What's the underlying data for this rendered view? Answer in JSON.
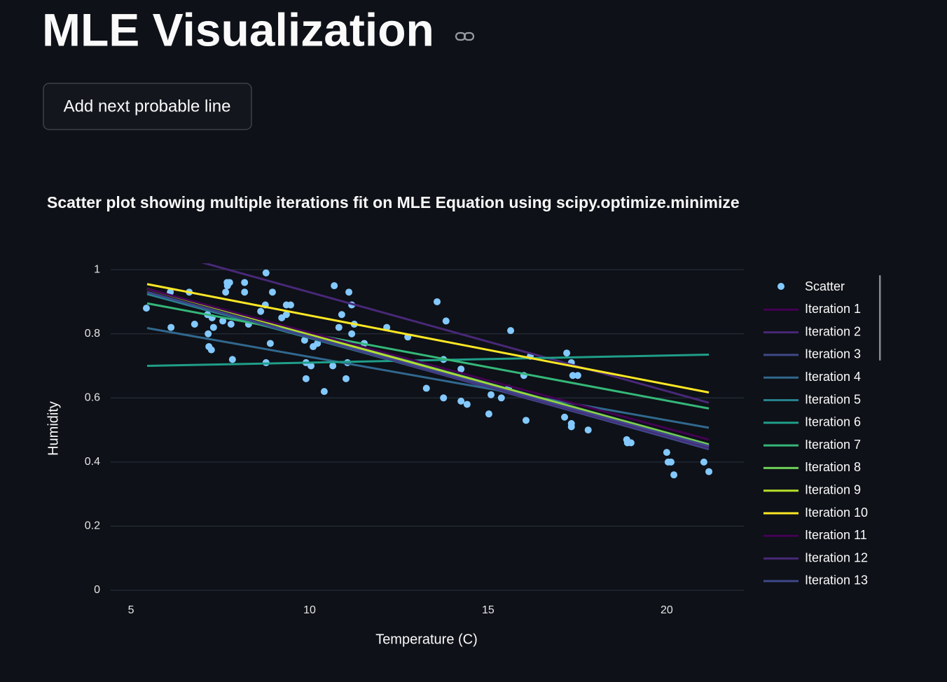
{
  "header": {
    "title": "MLE Visualization"
  },
  "button": {
    "label": "Add next probable line"
  },
  "chart_data": {
    "type": "scatter",
    "title": "Scatter plot showing multiple iterations fit on MLE Equation using scipy.optimize.minimize",
    "x_label": "Temperature  (C)",
    "y_label": "Humidity",
    "xlim": [
      4.43,
      22.16
    ],
    "ylim": [
      0,
      1.02
    ],
    "xticks": [
      5,
      10,
      15,
      20
    ],
    "yticks": [
      0,
      0.2,
      0.4,
      0.6,
      0.8,
      1
    ],
    "grid": true,
    "legend": "right",
    "series": [
      {
        "name": "Scatter",
        "mode": "markers",
        "color": "#83c9ff",
        "x": [
          5.43,
          6.12,
          6.1,
          6.63,
          6.78,
          7.14,
          7.16,
          7.18,
          7.25,
          7.31,
          7.27,
          7.57,
          7.65,
          7.69,
          7.76,
          7.7,
          7.8,
          7.84,
          8.18,
          8.18,
          8.29,
          8.63,
          8.78,
          8.76,
          8.78,
          8.9,
          8.96,
          9.22,
          9.35,
          9.35,
          9.47,
          9.86,
          9.9,
          9.9,
          10.04,
          10.1,
          10.22,
          10.41,
          10.69,
          10.65,
          10.82,
          10.9,
          11.02,
          11.06,
          11.1,
          11.18,
          11.18,
          11.25,
          11.53,
          12.16,
          12.75,
          13.27,
          13.57,
          13.75,
          13.82,
          13.75,
          14.24,
          14.24,
          14.41,
          15.02,
          15.08,
          15.37,
          15.57,
          15.63,
          16.0,
          16.06,
          16.18,
          17.14,
          17.2,
          17.33,
          17.33,
          17.33,
          17.37,
          17.51,
          17.8,
          18.88,
          18.9,
          19.0,
          20.0,
          20.04,
          20.12,
          20.2,
          21.04,
          21.18
        ],
        "values": [
          0.88,
          0.82,
          0.93,
          0.93,
          0.83,
          0.86,
          0.8,
          0.76,
          0.75,
          0.82,
          0.85,
          0.84,
          0.93,
          0.96,
          0.96,
          0.95,
          0.83,
          0.72,
          0.96,
          0.93,
          0.83,
          0.87,
          0.99,
          0.89,
          0.71,
          0.77,
          0.93,
          0.85,
          0.86,
          0.89,
          0.89,
          0.78,
          0.66,
          0.71,
          0.7,
          0.76,
          0.77,
          0.62,
          0.95,
          0.7,
          0.82,
          0.86,
          0.66,
          0.71,
          0.93,
          0.89,
          0.8,
          0.83,
          0.77,
          0.82,
          0.79,
          0.63,
          0.9,
          0.6,
          0.84,
          0.72,
          0.69,
          0.59,
          0.58,
          0.55,
          0.61,
          0.6,
          0.63,
          0.81,
          0.67,
          0.53,
          0.73,
          0.54,
          0.74,
          0.71,
          0.52,
          0.51,
          0.67,
          0.67,
          0.5,
          0.47,
          0.46,
          0.46,
          0.43,
          0.4,
          0.4,
          0.36,
          0.4,
          0.37
        ]
      },
      {
        "name": "Iteration 1",
        "mode": "lines",
        "color": "#440154",
        "x": [
          5.45,
          21.18
        ],
        "values": [
          0.93,
          0.445
        ]
      },
      {
        "name": "Iteration 2",
        "mode": "lines",
        "color": "#482878",
        "x": [
          5.45,
          21.18
        ],
        "values": [
          1.07,
          0.585
        ]
      },
      {
        "name": "Iteration 3",
        "mode": "lines",
        "color": "#3e4989",
        "x": [
          5.45,
          21.18
        ],
        "values": [
          0.93,
          0.44
        ]
      },
      {
        "name": "Iteration 4",
        "mode": "lines",
        "color": "#31688e",
        "x": [
          5.45,
          21.18
        ],
        "values": [
          0.818,
          0.507
        ]
      },
      {
        "name": "Iteration 5",
        "mode": "lines",
        "color": "#26828e",
        "x": [
          5.45,
          21.18
        ],
        "values": [
          0.924,
          0.45
        ]
      },
      {
        "name": "Iteration 6",
        "mode": "lines",
        "color": "#1f9e89",
        "x": [
          5.45,
          21.18
        ],
        "values": [
          0.7,
          0.735
        ]
      },
      {
        "name": "Iteration 7",
        "mode": "lines",
        "color": "#35b779",
        "x": [
          5.45,
          21.18
        ],
        "values": [
          0.895,
          0.567
        ]
      },
      {
        "name": "Iteration 8",
        "mode": "lines",
        "color": "#6ece58",
        "x": [
          5.45,
          21.18
        ],
        "values": [
          0.94,
          0.455
        ]
      },
      {
        "name": "Iteration 9",
        "mode": "lines",
        "color": "#b5de2b",
        "x": [
          5.45,
          21.18
        ],
        "values": [
          0.94,
          0.45
        ]
      },
      {
        "name": "Iteration 10",
        "mode": "lines",
        "color": "#fde725",
        "x": [
          5.45,
          21.18
        ],
        "values": [
          0.955,
          0.617
        ]
      },
      {
        "name": "Iteration 11",
        "mode": "lines",
        "color": "#440154",
        "x": [
          5.45,
          21.18
        ],
        "values": [
          0.94,
          0.47
        ]
      },
      {
        "name": "Iteration 12",
        "mode": "lines",
        "color": "#482878",
        "x": [
          5.45,
          21.18
        ],
        "values": [
          0.93,
          0.445
        ]
      },
      {
        "name": "Iteration 13",
        "mode": "lines",
        "color": "#3e4989",
        "x": [
          5.45,
          21.18
        ],
        "values": [
          0.93,
          0.45
        ]
      }
    ]
  }
}
